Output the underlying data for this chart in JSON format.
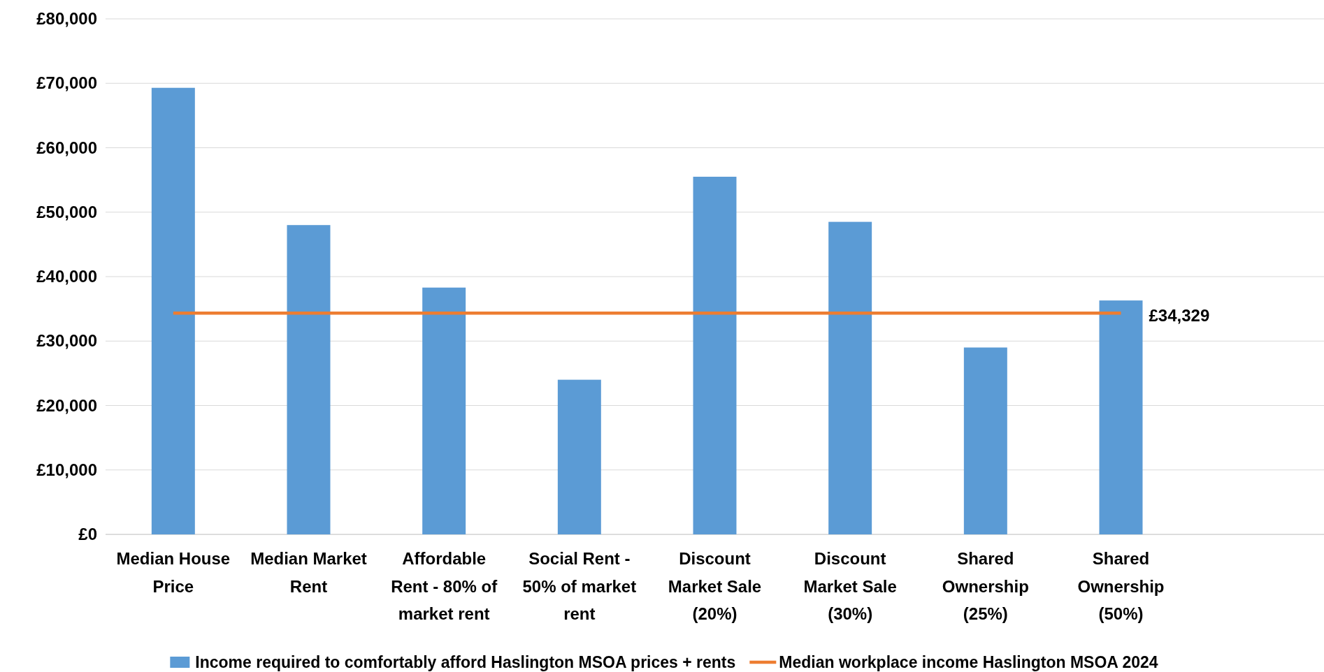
{
  "chart_data": {
    "type": "bar",
    "categories": [
      "Median House Price",
      "Median Market Rent",
      "Affordable Rent - 80% of market rent",
      "Social Rent - 50% of market rent",
      "Discount Market Sale (20%)",
      "Discount Market Sale (30%)",
      "Shared Ownership (25%)",
      "Shared Ownership (50%)",
      null
    ],
    "series": [
      {
        "name": "Income required to comfortably afford Haslington MSOA prices + rents",
        "color": "#5b9bd5",
        "values": [
          69300,
          48000,
          38300,
          24000,
          55500,
          48500,
          29000,
          36300,
          null
        ]
      },
      {
        "name": "Median workplace income Haslington MSOA 2024",
        "type": "line",
        "color": "#ed7d31",
        "values": [
          34329,
          34329,
          34329,
          34329,
          34329,
          34329,
          34329,
          34329,
          null
        ],
        "value_labels": [
          null,
          null,
          null,
          null,
          null,
          null,
          null,
          "£34,329",
          null
        ]
      }
    ],
    "ylim": [
      0,
      80000
    ],
    "yticks": [
      {
        "value": 0,
        "label": "£0"
      },
      {
        "value": 10000,
        "label": "£10,000"
      },
      {
        "value": 20000,
        "label": "£20,000"
      },
      {
        "value": 30000,
        "label": "£30,000"
      },
      {
        "value": 40000,
        "label": "£40,000"
      },
      {
        "value": 50000,
        "label": "£50,000"
      },
      {
        "value": 60000,
        "label": "£60,000"
      },
      {
        "value": 70000,
        "label": "£70,000"
      },
      {
        "value": 80000,
        "label": "£80,000"
      }
    ],
    "grid": "y",
    "legend": "bottom",
    "marker": "none",
    "line_style": "solid"
  }
}
